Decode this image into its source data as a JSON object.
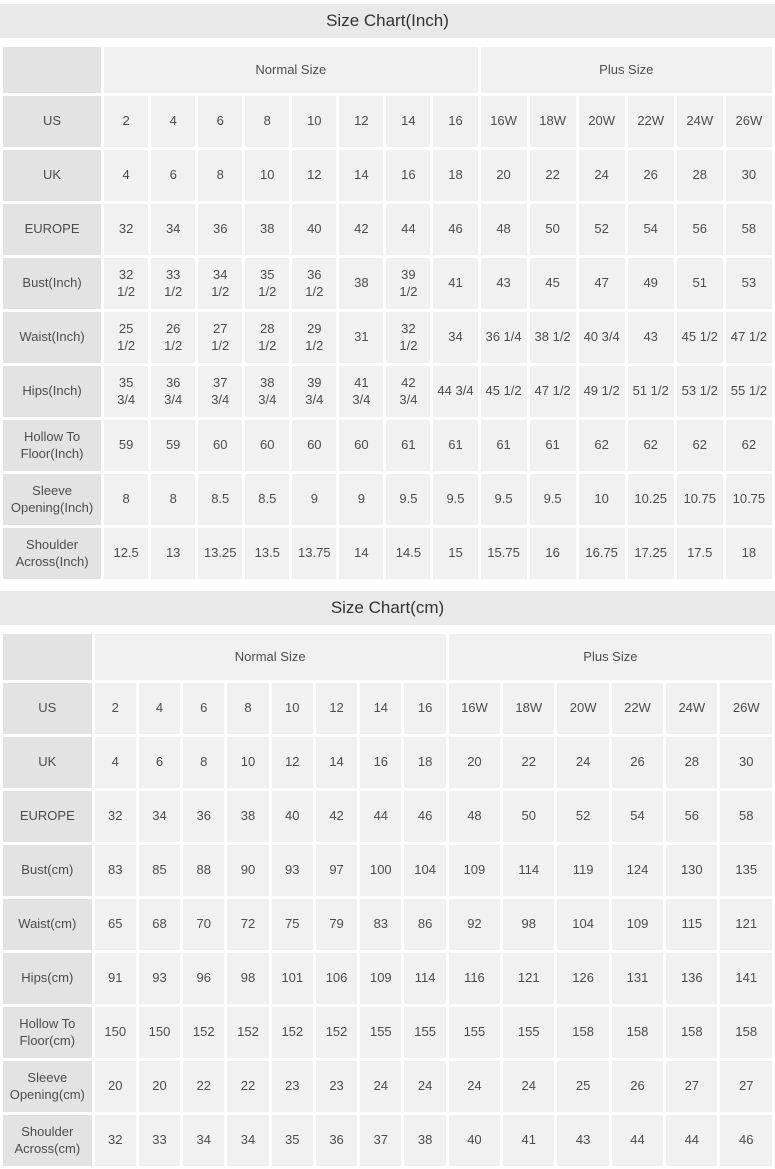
{
  "colors": {
    "title_bar_bg": "#e9e9e9",
    "label_cell_bg": "#e3e3e3",
    "value_cell_bg": "#f1f1f1",
    "text": "#4d4d4d",
    "title_text": "#333333"
  },
  "chart_data": [
    {
      "type": "table",
      "title": "Size Chart(Inch)",
      "group_headers": [
        "Normal Size",
        "Plus Size"
      ],
      "normal_span": 8,
      "plus_span": 6,
      "rows": [
        {
          "label": "US",
          "values": [
            "2",
            "4",
            "6",
            "8",
            "10",
            "12",
            "14",
            "16",
            "16W",
            "18W",
            "20W",
            "22W",
            "24W",
            "26W"
          ]
        },
        {
          "label": "UK",
          "values": [
            "4",
            "6",
            "8",
            "10",
            "12",
            "14",
            "16",
            "18",
            "20",
            "22",
            "24",
            "26",
            "28",
            "30"
          ]
        },
        {
          "label": "EUROPE",
          "values": [
            "32",
            "34",
            "36",
            "38",
            "40",
            "42",
            "44",
            "46",
            "48",
            "50",
            "52",
            "54",
            "56",
            "58"
          ]
        },
        {
          "label": "Bust(Inch)",
          "values": [
            "32\n1/2",
            "33\n1/2",
            "34\n1/2",
            "35\n1/2",
            "36\n1/2",
            "38",
            "39\n1/2",
            "41",
            "43",
            "45",
            "47",
            "49",
            "51",
            "53"
          ]
        },
        {
          "label": "Waist(Inch)",
          "values": [
            "25\n1/2",
            "26\n1/2",
            "27\n1/2",
            "28\n1/2",
            "29\n1/2",
            "31",
            "32\n1/2",
            "34",
            "36 1/4",
            "38 1/2",
            "40 3/4",
            "43",
            "45 1/2",
            "47 1/2"
          ]
        },
        {
          "label": "Hips(Inch)",
          "values": [
            "35\n3/4",
            "36\n3/4",
            "37\n3/4",
            "38\n3/4",
            "39\n3/4",
            "41\n3/4",
            "42\n3/4",
            "44 3/4",
            "45 1/2",
            "47 1/2",
            "49 1/2",
            "51 1/2",
            "53 1/2",
            "55 1/2"
          ]
        },
        {
          "label": "Hollow To\nFloor(Inch)",
          "values": [
            "59",
            "59",
            "60",
            "60",
            "60",
            "60",
            "61",
            "61",
            "61",
            "61",
            "62",
            "62",
            "62",
            "62"
          ]
        },
        {
          "label": "Sleeve\nOpening(Inch)",
          "values": [
            "8",
            "8",
            "8.5",
            "8.5",
            "9",
            "9",
            "9.5",
            "9.5",
            "9.5",
            "9.5",
            "10",
            "10.25",
            "10.75",
            "10.75"
          ]
        },
        {
          "label": "Shoulder\nAcross(Inch)",
          "values": [
            "12.5",
            "13",
            "13.25",
            "13.5",
            "13.75",
            "14",
            "14.5",
            "15",
            "15.75",
            "16",
            "16.75",
            "17.25",
            "17.5",
            "18"
          ]
        }
      ]
    },
    {
      "type": "table",
      "title": "Size Chart(cm)",
      "group_headers": [
        "Normal Size",
        "Plus Size"
      ],
      "normal_span": 8,
      "plus_span": 6,
      "rows": [
        {
          "label": "US",
          "values": [
            "2",
            "4",
            "6",
            "8",
            "10",
            "12",
            "14",
            "16",
            "16W",
            "18W",
            "20W",
            "22W",
            "24W",
            "26W"
          ]
        },
        {
          "label": "UK",
          "values": [
            "4",
            "6",
            "8",
            "10",
            "12",
            "14",
            "16",
            "18",
            "20",
            "22",
            "24",
            "26",
            "28",
            "30"
          ]
        },
        {
          "label": "EUROPE",
          "values": [
            "32",
            "34",
            "36",
            "38",
            "40",
            "42",
            "44",
            "46",
            "48",
            "50",
            "52",
            "54",
            "56",
            "58"
          ]
        },
        {
          "label": "Bust(cm)",
          "values": [
            "83",
            "85",
            "88",
            "90",
            "93",
            "97",
            "100",
            "104",
            "109",
            "114",
            "119",
            "124",
            "130",
            "135"
          ]
        },
        {
          "label": "Waist(cm)",
          "values": [
            "65",
            "68",
            "70",
            "72",
            "75",
            "79",
            "83",
            "86",
            "92",
            "98",
            "104",
            "109",
            "115",
            "121"
          ]
        },
        {
          "label": "Hips(cm)",
          "values": [
            "91",
            "93",
            "96",
            "98",
            "101",
            "106",
            "109",
            "114",
            "116",
            "121",
            "126",
            "131",
            "136",
            "141"
          ]
        },
        {
          "label": "Hollow To\nFloor(cm)",
          "values": [
            "150",
            "150",
            "152",
            "152",
            "152",
            "152",
            "155",
            "155",
            "155",
            "155",
            "158",
            "158",
            "158",
            "158"
          ]
        },
        {
          "label": "Sleeve\nOpening(cm)",
          "values": [
            "20",
            "20",
            "22",
            "22",
            "23",
            "23",
            "24",
            "24",
            "24",
            "24",
            "25",
            "26",
            "27",
            "27"
          ]
        },
        {
          "label": "Shoulder\nAcross(cm)",
          "values": [
            "32",
            "33",
            "34",
            "34",
            "35",
            "36",
            "37",
            "38",
            "40",
            "41",
            "43",
            "44",
            "44",
            "46"
          ]
        }
      ]
    }
  ]
}
